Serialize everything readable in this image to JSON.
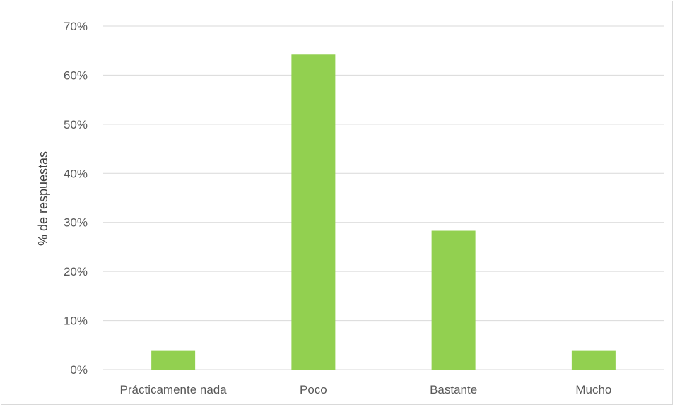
{
  "chart_data": {
    "type": "bar",
    "categories": [
      "Prácticamente nada",
      "Poco",
      "Bastante",
      "Mucho"
    ],
    "values": [
      3.8,
      64.2,
      28.3,
      3.8
    ],
    "ylabel": "% de respuestas",
    "xlabel": "",
    "ylim": [
      0,
      70
    ],
    "yticks": [
      "0%",
      "10%",
      "20%",
      "30%",
      "40%",
      "50%",
      "60%",
      "70%"
    ],
    "grid": true,
    "bar_color": "#92d050",
    "gridline_color": "#d9d9d9"
  }
}
